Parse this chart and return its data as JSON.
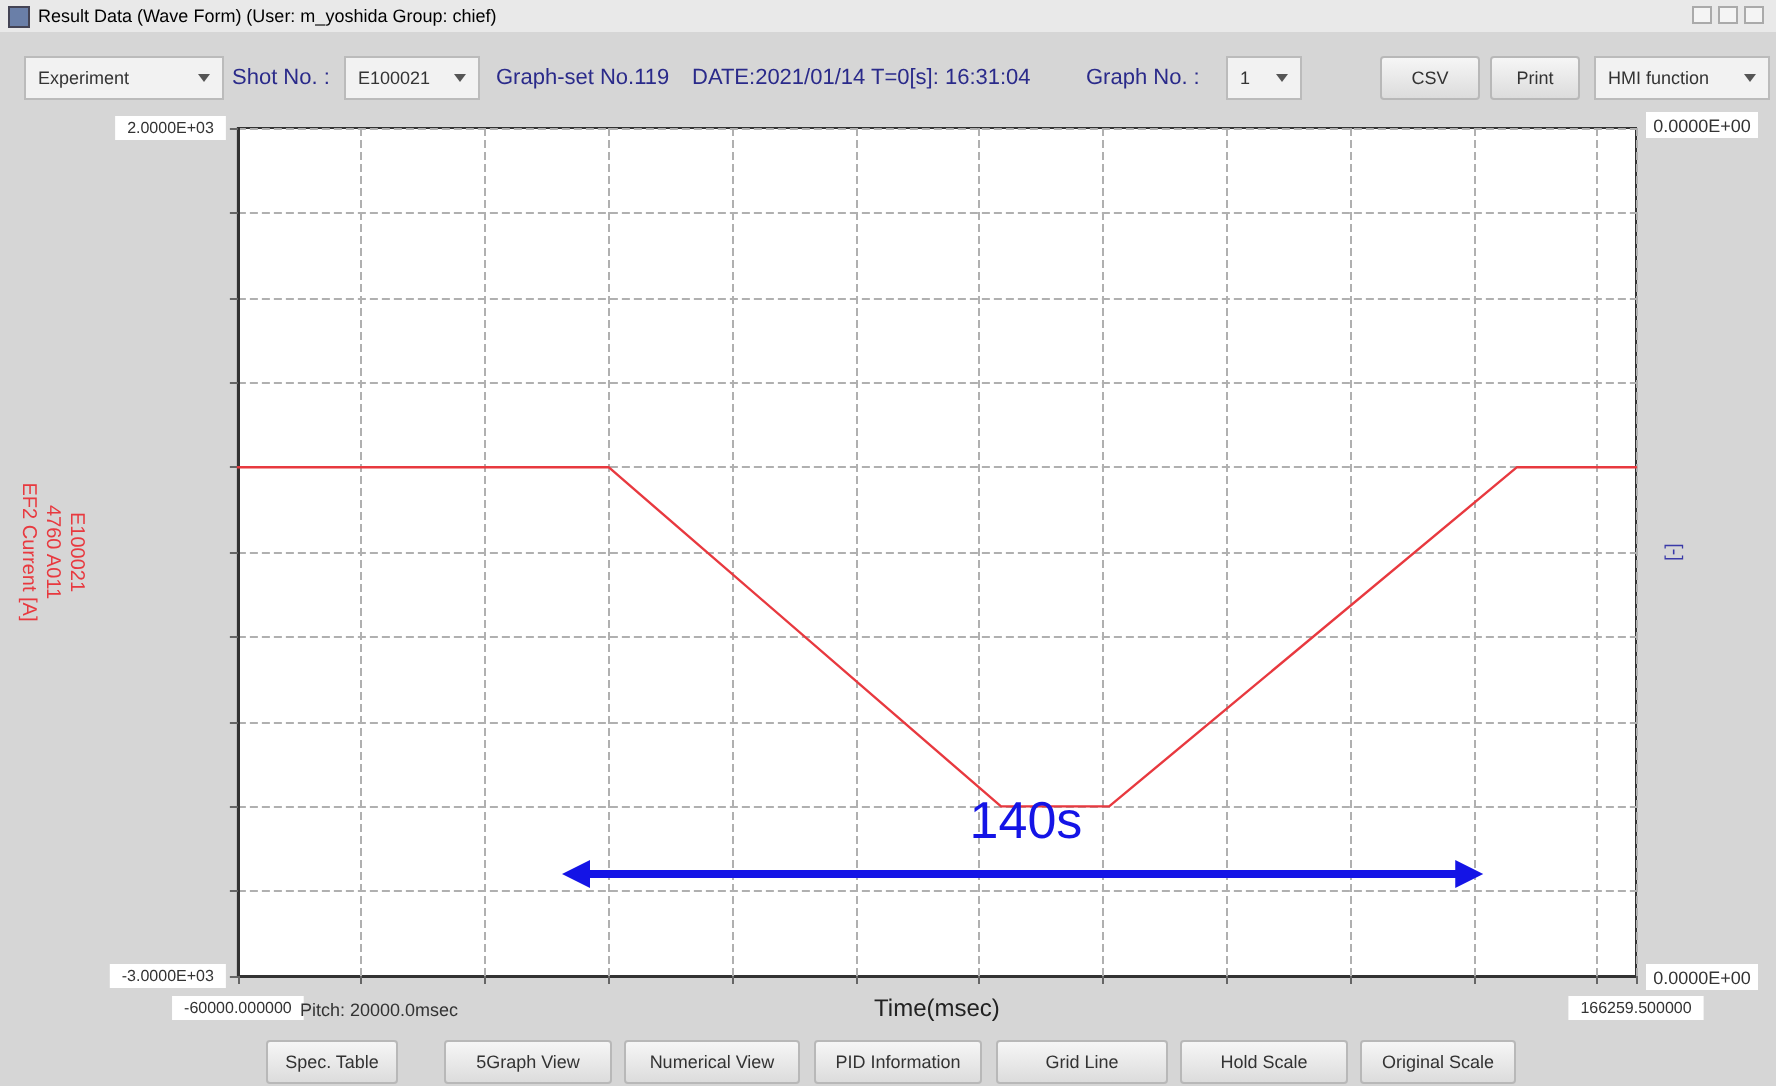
{
  "chart_data": {
    "type": "line",
    "title": "Result Data (Wave Form) (User: m_yoshida Group: chief)",
    "xlabel": "Time(msec)",
    "ylabel": "E100021\n4760 A011\nEF2 Current [A]",
    "y2label": "[-]",
    "x": [
      -60000,
      0,
      63500,
      81000,
      147000,
      166259.5
    ],
    "series": [
      {
        "color": "#e8393f",
        "values": [
          0,
          0,
          -2000,
          -2000,
          0,
          0
        ]
      }
    ],
    "xlim": [
      -60000,
      166259.5
    ],
    "xticks": [
      {
        "value": -60000,
        "label": "-60000.000000"
      },
      {
        "value": -40000,
        "label": null
      },
      {
        "value": -20000,
        "label": null
      },
      {
        "value": 0,
        "label": null
      },
      {
        "value": 20000,
        "label": null
      },
      {
        "value": 40000,
        "label": null
      },
      {
        "value": 60000,
        "label": null
      },
      {
        "value": 80000,
        "label": null
      },
      {
        "value": 100000,
        "label": null
      },
      {
        "value": 120000,
        "label": null
      },
      {
        "value": 140000,
        "label": null
      },
      {
        "value": 160000,
        "label": null
      },
      {
        "value": 166259.5,
        "label": "166259.500000"
      }
    ],
    "ylim": [
      -3000,
      2000
    ],
    "yticks": [
      {
        "value": -3000,
        "label": "-3.0000E+03"
      },
      {
        "value": -2500,
        "label": null
      },
      {
        "value": -2000,
        "label": null
      },
      {
        "value": -1500,
        "label": null
      },
      {
        "value": -1000,
        "label": null
      },
      {
        "value": -500,
        "label": null
      },
      {
        "value": 0,
        "label": null
      },
      {
        "value": 500,
        "label": null
      },
      {
        "value": 1000,
        "label": null
      },
      {
        "value": 1500,
        "label": null
      },
      {
        "value": 2000,
        "label": "2.0000E+03"
      }
    ],
    "grid": true,
    "marker": "none",
    "line_style": "solid",
    "annotations": [
      "Experiment",
      "Shot No. :",
      "E100021",
      "Graph-set No.119",
      "DATE:2021/01/14 T=0[s]: 16:31:04",
      "Graph No. :",
      "1",
      "CSV",
      "Print",
      "HMI function",
      "Pitch: 20000.0msec",
      "Spec. Table",
      "5Graph View",
      "Numerical View",
      "PID Information",
      "Grid Line",
      "Hold Scale",
      "Original Scale",
      "0.0000E+00",
      "0.0000E+00",
      "140s"
    ]
  }
}
